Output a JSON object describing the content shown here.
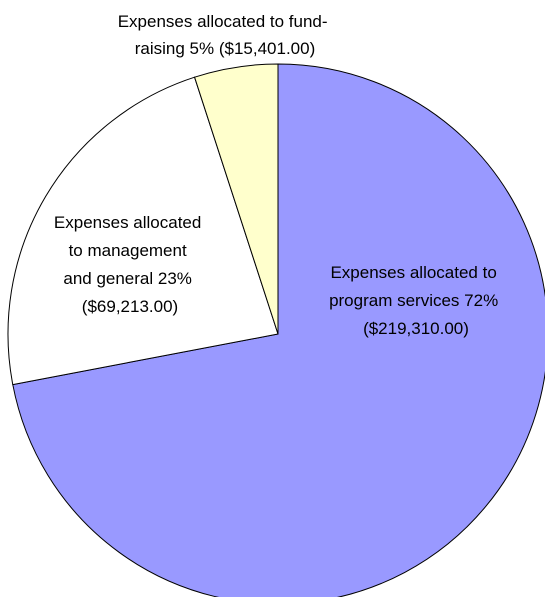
{
  "chart_data": {
    "type": "pie",
    "title": "",
    "start_angle_deg": 0,
    "direction": "clockwise",
    "slices": [
      {
        "name": "Expenses allocated to program services",
        "percent": 72,
        "value": 219310.0,
        "label_lines": [
          "Expenses allocated to",
          "program services 72%",
          "($219,310.00)"
        ],
        "color": "#9999ff"
      },
      {
        "name": "Expenses allocated to management and general",
        "percent": 23,
        "value": 69213.0,
        "label_lines": [
          "Expenses allocated",
          "to management",
          "and general 23%",
          "($69,213.00)"
        ],
        "color": "#ffffff"
      },
      {
        "name": "Expenses allocated to fund-raising",
        "percent": 5,
        "value": 15401.0,
        "label_lines": [
          "Expenses allocated to fund-",
          "raising 5% ($15,401.00)"
        ],
        "color": "#ffffcc"
      }
    ]
  }
}
